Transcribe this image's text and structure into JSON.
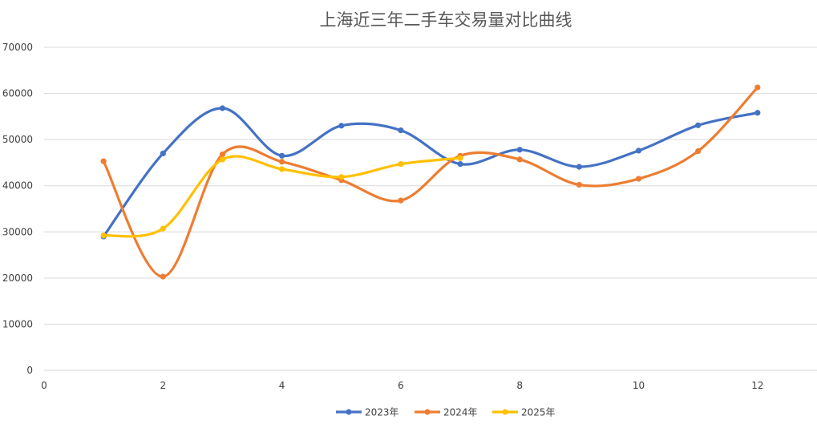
{
  "chart_data": {
    "type": "line",
    "title": "上海近三年二手车交易量对比曲线",
    "xlabel": "",
    "ylabel": "",
    "xlim": [
      0,
      13
    ],
    "ylim": [
      0,
      70000
    ],
    "x_ticks": [
      "0",
      "2",
      "4",
      "6",
      "8",
      "10",
      "12"
    ],
    "y_ticks": [
      "0",
      "10000",
      "20000",
      "30000",
      "40000",
      "50000",
      "60000",
      "70000"
    ],
    "grid": true,
    "smooth": true,
    "legend_position": "bottom",
    "series": [
      {
        "name": "2023年",
        "color": "#4472C4",
        "x": [
          1,
          2,
          3,
          4,
          5,
          6,
          7,
          8,
          9,
          10,
          11,
          12
        ],
        "values": [
          29000,
          47000,
          56800,
          46500,
          53000,
          52000,
          44700,
          47800,
          44100,
          47600,
          53100,
          55800
        ]
      },
      {
        "name": "2024年",
        "color": "#ED7D31",
        "x": [
          1,
          2,
          3,
          4,
          5,
          6,
          7,
          8,
          9,
          10,
          11,
          12
        ],
        "values": [
          45300,
          20300,
          46800,
          45200,
          41200,
          36800,
          46500,
          45700,
          40200,
          41500,
          47500,
          61300
        ]
      },
      {
        "name": "2025年",
        "color": "#FFC000",
        "x": [
          1,
          2,
          3,
          4,
          5,
          6,
          7
        ],
        "values": [
          29200,
          30700,
          45700,
          43600,
          41900,
          44700,
          46000
        ]
      }
    ]
  }
}
